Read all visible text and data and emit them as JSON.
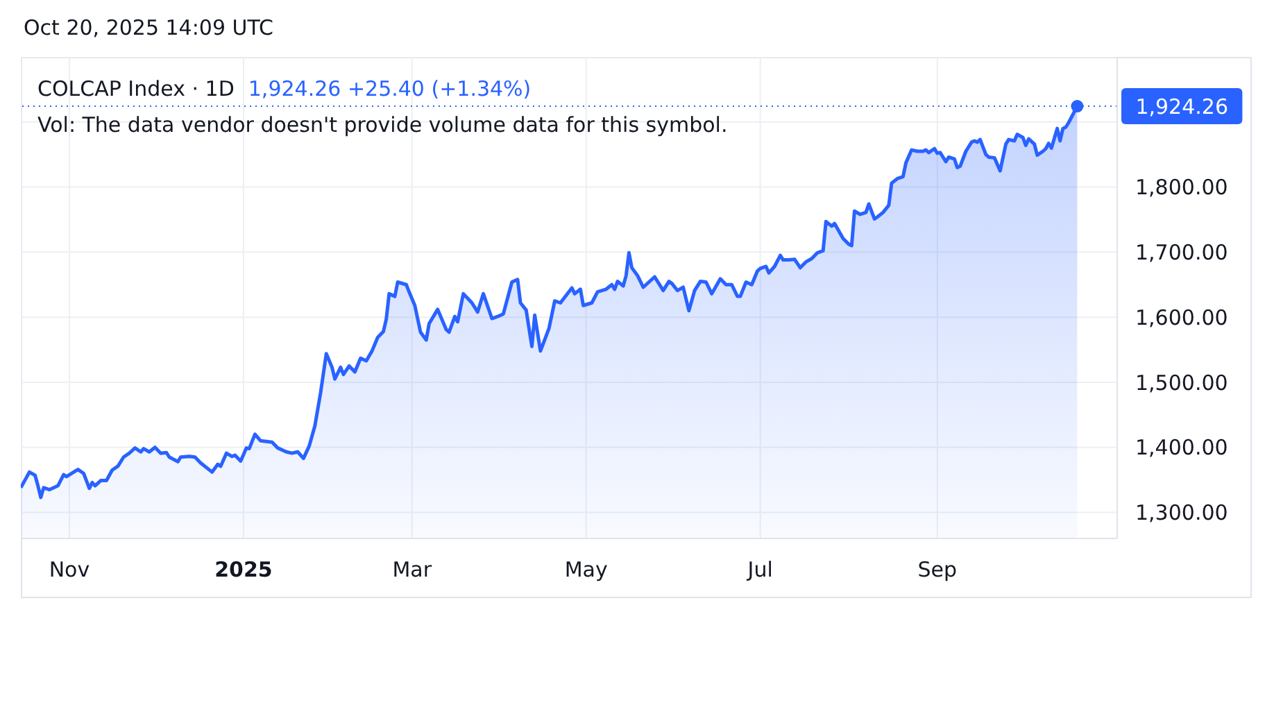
{
  "chart_data": {
    "type": "area",
    "title": "COLCAP Index · 1D",
    "subtitle": "1,924.26 +25.40 (+1.34%)",
    "annotations": [
      "Oct 20, 2025 14:09 UTC",
      "Vol: The data vendor doesn't provide volume data for this symbol."
    ],
    "x": [
      "2024-10-15",
      "2024-10-18",
      "2024-10-20",
      "2024-10-21",
      "2024-10-22",
      "2024-10-23",
      "2024-10-25",
      "2024-10-28",
      "2024-10-30",
      "2024-10-31",
      "2024-11-04",
      "2024-11-06",
      "2024-11-08",
      "2024-11-09",
      "2024-11-10",
      "2024-11-12",
      "2024-11-14",
      "2024-11-16",
      "2024-11-18",
      "2024-11-20",
      "2024-11-22",
      "2024-11-24",
      "2024-11-26",
      "2024-11-27",
      "2024-11-29",
      "2024-12-01",
      "2024-12-03",
      "2024-12-05",
      "2024-12-06",
      "2024-12-09",
      "2024-12-10",
      "2024-12-13",
      "2024-12-15",
      "2024-12-17",
      "2024-12-21",
      "2024-12-23",
      "2024-12-24",
      "2024-12-26",
      "2024-12-28",
      "2024-12-29",
      "2024-12-31",
      "2025-01-02",
      "2025-01-03",
      "2025-01-05",
      "2025-01-07",
      "2025-01-11",
      "2025-01-13",
      "2025-01-16",
      "2025-01-18",
      "2025-01-20",
      "2025-01-22",
      "2025-01-24",
      "2025-01-26",
      "2025-01-28",
      "2025-01-30",
      "2025-02-01",
      "2025-02-02",
      "2025-02-04",
      "2025-02-05",
      "2025-02-07",
      "2025-02-09",
      "2025-02-11",
      "2025-02-13",
      "2025-02-15",
      "2025-02-17",
      "2025-02-19",
      "2025-02-20",
      "2025-02-21",
      "2025-02-23",
      "2025-02-24",
      "2025-02-27",
      "2025-02-28",
      "2025-03-02",
      "2025-03-04",
      "2025-03-06",
      "2025-03-07",
      "2025-03-10",
      "2025-03-13",
      "2025-03-14",
      "2025-03-16",
      "2025-03-17",
      "2025-03-19",
      "2025-03-22",
      "2025-03-24",
      "2025-03-26",
      "2025-03-29",
      "2025-03-31",
      "2025-04-02",
      "2025-04-05",
      "2025-04-07",
      "2025-04-08",
      "2025-04-10",
      "2025-04-12",
      "2025-04-13",
      "2025-04-15",
      "2025-04-18",
      "2025-04-20",
      "2025-04-22",
      "2025-04-26",
      "2025-04-27",
      "2025-04-29",
      "2025-04-30",
      "2025-05-03",
      "2025-05-05",
      "2025-05-08",
      "2025-05-10",
      "2025-05-11",
      "2025-05-12",
      "2025-05-14",
      "2025-05-15",
      "2025-05-16",
      "2025-05-17",
      "2025-05-19",
      "2025-05-21",
      "2025-05-25",
      "2025-05-28",
      "2025-05-30",
      "2025-05-31",
      "2025-06-02",
      "2025-06-04",
      "2025-06-06",
      "2025-06-08",
      "2025-06-10",
      "2025-06-12",
      "2025-06-14",
      "2025-06-17",
      "2025-06-19",
      "2025-06-21",
      "2025-06-23",
      "2025-06-24",
      "2025-06-26",
      "2025-06-28",
      "2025-06-30",
      "2025-07-01",
      "2025-07-03",
      "2025-07-04",
      "2025-07-06",
      "2025-07-08",
      "2025-07-09",
      "2025-07-11",
      "2025-07-13",
      "2025-07-15",
      "2025-07-17",
      "2025-07-19",
      "2025-07-21",
      "2025-07-23",
      "2025-07-24",
      "2025-07-26",
      "2025-07-27",
      "2025-07-30",
      "2025-08-01",
      "2025-08-02",
      "2025-08-03",
      "2025-08-05",
      "2025-08-07",
      "2025-08-08",
      "2025-08-10",
      "2025-08-11",
      "2025-08-13",
      "2025-08-15",
      "2025-08-16",
      "2025-08-18",
      "2025-08-20",
      "2025-08-21",
      "2025-08-23",
      "2025-08-25",
      "2025-08-27",
      "2025-08-28",
      "2025-08-29",
      "2025-08-31",
      "2025-09-01",
      "2025-09-02",
      "2025-09-04",
      "2025-09-05",
      "2025-09-07",
      "2025-09-08",
      "2025-09-09",
      "2025-09-11",
      "2025-09-13",
      "2025-09-14",
      "2025-09-15",
      "2025-09-16",
      "2025-09-18",
      "2025-09-19",
      "2025-09-21",
      "2025-09-23",
      "2025-09-25",
      "2025-09-26",
      "2025-09-28",
      "2025-09-29",
      "2025-10-01",
      "2025-10-02",
      "2025-10-03",
      "2025-10-05",
      "2025-10-06",
      "2025-10-08",
      "2025-10-09",
      "2025-10-10",
      "2025-10-11",
      "2025-10-13",
      "2025-10-14",
      "2025-10-15",
      "2025-10-16",
      "2025-10-17",
      "2025-10-20"
    ],
    "series": [
      {
        "color": "#2962ff",
        "values": [
          1338,
          1362,
          1357,
          1341,
          1323,
          1338,
          1335,
          1341,
          1358,
          1355,
          1366,
          1360,
          1337,
          1346,
          1341,
          1349,
          1349,
          1365,
          1371,
          1385,
          1391,
          1399,
          1393,
          1398,
          1393,
          1400,
          1391,
          1392,
          1385,
          1378,
          1385,
          1386,
          1385,
          1376,
          1362,
          1374,
          1371,
          1391,
          1386,
          1388,
          1379,
          1399,
          1398,
          1420,
          1410,
          1408,
          1399,
          1393,
          1391,
          1393,
          1383,
          1402,
          1433,
          1484,
          1544,
          1523,
          1505,
          1523,
          1512,
          1525,
          1516,
          1537,
          1533,
          1548,
          1569,
          1578,
          1597,
          1636,
          1632,
          1654,
          1650,
          1639,
          1618,
          1577,
          1565,
          1590,
          1612,
          1581,
          1577,
          1601,
          1593,
          1636,
          1622,
          1608,
          1636,
          1598,
          1601,
          1605,
          1654,
          1658,
          1622,
          1611,
          1555,
          1603,
          1548,
          1583,
          1625,
          1622,
          1645,
          1636,
          1643,
          1618,
          1622,
          1639,
          1643,
          1650,
          1643,
          1655,
          1648,
          1664,
          1699,
          1676,
          1664,
          1646,
          1662,
          1641,
          1655,
          1652,
          1641,
          1646,
          1610,
          1641,
          1655,
          1654,
          1636,
          1659,
          1650,
          1650,
          1632,
          1632,
          1654,
          1650,
          1671,
          1675,
          1678,
          1668,
          1678,
          1695,
          1688,
          1688,
          1689,
          1676,
          1685,
          1690,
          1699,
          1702,
          1747,
          1740,
          1744,
          1721,
          1712,
          1710,
          1763,
          1758,
          1761,
          1774,
          1751,
          1754,
          1761,
          1772,
          1806,
          1813,
          1816,
          1837,
          1857,
          1855,
          1855,
          1857,
          1853,
          1859,
          1852,
          1853,
          1839,
          1846,
          1843,
          1830,
          1832,
          1855,
          1869,
          1871,
          1869,
          1873,
          1850,
          1846,
          1845,
          1825,
          1866,
          1873,
          1871,
          1881,
          1876,
          1864,
          1874,
          1866,
          1849,
          1855,
          1859,
          1867,
          1860,
          1890,
          1871,
          1890,
          1892,
          1899,
          1924.26
        ]
      },
      {
        "type": "scatter",
        "x": [
          "2025-10-20"
        ],
        "values": [
          1924.26
        ],
        "color": "#2962ff",
        "marker": "circle"
      }
    ],
    "xlim": [
      "2024-10-15",
      "2025-11-03"
    ],
    "xticks": [
      {
        "value": "2024-11-01",
        "label": "Nov"
      },
      {
        "value": "2025-01-01",
        "label": "2025"
      },
      {
        "value": "2025-03-01",
        "label": "Mar"
      },
      {
        "value": "2025-05-01",
        "label": "May"
      },
      {
        "value": "2025-07-01",
        "label": "Jul"
      },
      {
        "value": "2025-09-01",
        "label": "Sep"
      }
    ],
    "ylim": [
      1260,
      2000
    ],
    "yticks": [
      {
        "value": 1300,
        "label": "1,300.00"
      },
      {
        "value": 1400,
        "label": "1,400.00"
      },
      {
        "value": 1500,
        "label": "1,500.00"
      },
      {
        "value": 1600,
        "label": "1,600.00"
      },
      {
        "value": 1700,
        "label": "1,700.00"
      },
      {
        "value": 1800,
        "label": "1,800.00"
      },
      {
        "value": 1900,
        "label": null
      }
    ],
    "grid": true,
    "ref_lines": [
      {
        "axis": "y",
        "value": 1924.26,
        "label": "1,924.26",
        "color": "#2962ff",
        "line_style": "dotted"
      }
    ]
  }
}
